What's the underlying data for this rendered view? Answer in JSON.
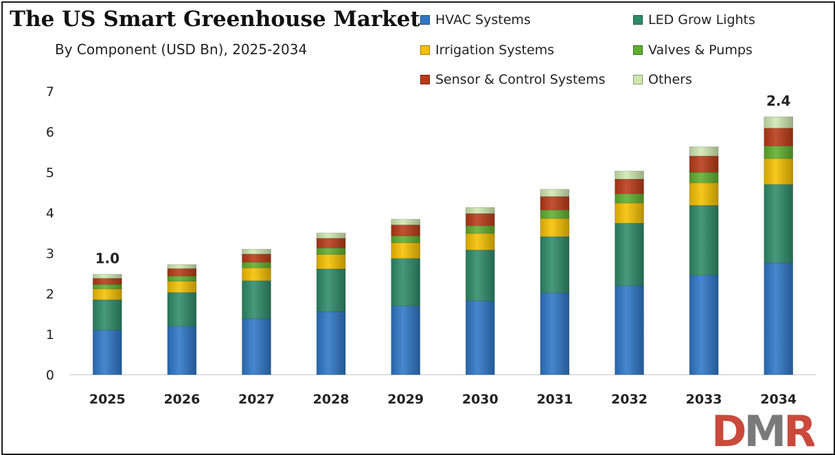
{
  "header": {
    "title": "The US Smart Greenhouse Market",
    "subtitle": "By Component (USD Bn), 2025-2034"
  },
  "logo": {
    "text": "DMR",
    "colors": [
      "#c94a3c",
      "#7a7a7a",
      "#c94a3c"
    ]
  },
  "chart_data": {
    "type": "bar",
    "stacked": true,
    "categories": [
      "2025",
      "2026",
      "2027",
      "2028",
      "2029",
      "2030",
      "2031",
      "2032",
      "2033",
      "2034"
    ],
    "series": [
      {
        "name": "HVAC Systems",
        "color": "#2f77c6",
        "values": [
          1.1,
          1.2,
          1.38,
          1.55,
          1.7,
          1.82,
          2.02,
          2.2,
          2.46,
          2.76
        ]
      },
      {
        "name": "LED Grow Lights",
        "color": "#2e8b6a",
        "values": [
          0.75,
          0.83,
          0.94,
          1.06,
          1.17,
          1.26,
          1.39,
          1.54,
          1.72,
          1.94
        ]
      },
      {
        "name": "Irrigation Systems",
        "color": "#f5c000",
        "values": [
          0.27,
          0.28,
          0.32,
          0.36,
          0.39,
          0.41,
          0.45,
          0.5,
          0.56,
          0.64
        ]
      },
      {
        "name": "Valves & Pumps",
        "color": "#5fae2e",
        "values": [
          0.11,
          0.13,
          0.14,
          0.16,
          0.17,
          0.19,
          0.21,
          0.23,
          0.26,
          0.31
        ]
      },
      {
        "name": "Sensor & Control Systems",
        "color": "#b93a16",
        "values": [
          0.15,
          0.18,
          0.2,
          0.24,
          0.27,
          0.3,
          0.33,
          0.36,
          0.4,
          0.44
        ]
      },
      {
        "name": "Others",
        "color": "#cfe8b0",
        "values": [
          0.1,
          0.1,
          0.12,
          0.13,
          0.14,
          0.15,
          0.18,
          0.2,
          0.23,
          0.28
        ]
      }
    ],
    "ylim": [
      0,
      7
    ],
    "yticks": [
      0,
      1,
      2,
      3,
      4,
      5,
      6,
      7
    ],
    "grid": false,
    "legend": "top-right",
    "data_labels": [
      {
        "category": "2025",
        "text": "1.0"
      },
      {
        "category": "2034",
        "text": "2.4"
      }
    ]
  }
}
